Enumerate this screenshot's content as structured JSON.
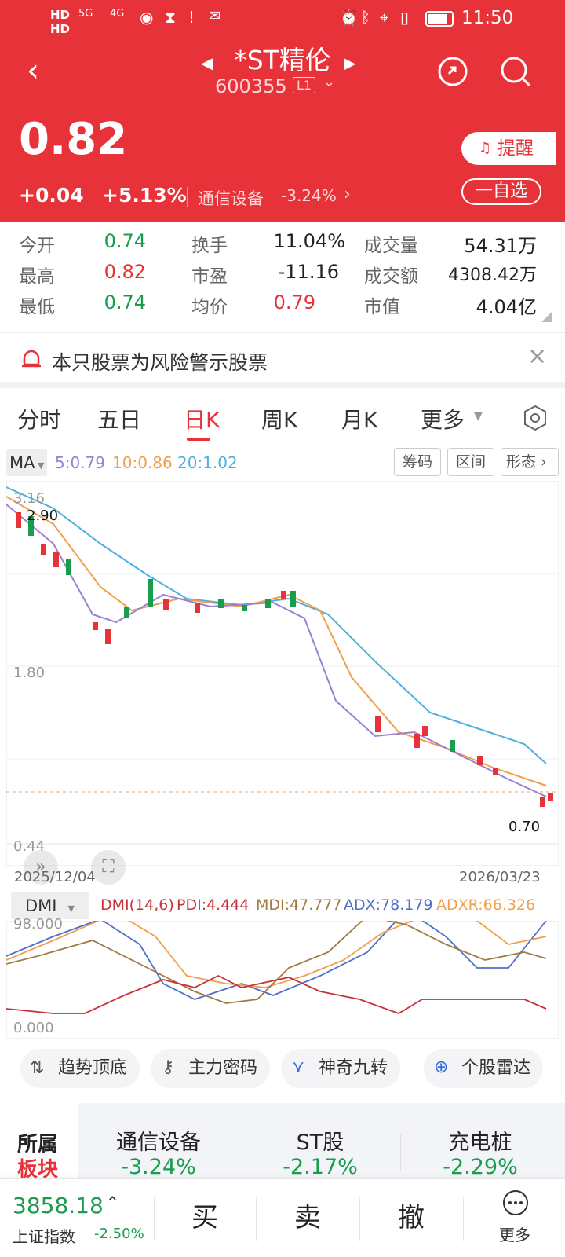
{
  "status": {
    "net1": "HD",
    "net2": "HD",
    "sig1": "5G",
    "sig2": "4G",
    "time": "11:50"
  },
  "header": {
    "title": "*ST精伦",
    "code": "600355",
    "level": "L1"
  },
  "price": {
    "last": "0.82",
    "change": "+0.04",
    "pct": "+5.13%",
    "sector": "通信设备",
    "sector_pct": "-3.24%",
    "remind": "提醒",
    "add": "一自选"
  },
  "quote": {
    "open_l": "今开",
    "open": "0.74",
    "turn_l": "换手",
    "turn": "11.04%",
    "vol_l": "成交量",
    "vol": "54.31万",
    "high_l": "最高",
    "high": "0.82",
    "pe_l": "市盈",
    "pe": "-11.16",
    "amt_l": "成交额",
    "amt": "4308.42万",
    "low_l": "最低",
    "low": "0.74",
    "avg_l": "均价",
    "avg": "0.79",
    "mcap_l": "市值",
    "mcap": "4.04亿"
  },
  "warning": "本只股票为风险警示股票",
  "tabs": {
    "t1": "分时",
    "t2": "五日",
    "t3": "日K",
    "t4": "周K",
    "t5": "月K",
    "t6": "更多"
  },
  "ma": {
    "sel": "MA",
    "ma5": "5:0.79",
    "ma10": "10:0.86",
    "ma20": "20:1.02",
    "b1": "筹码",
    "b2": "区间",
    "b3": "形态"
  },
  "kline": {
    "y_top": "3.16",
    "y_mid": "1.80",
    "y_bot": "0.44",
    "hi_mark": "2.90",
    "lo_mark": "0.70",
    "d_start": "2025/12/04",
    "d_end": "2026/03/23"
  },
  "dmi": {
    "sel": "DMI",
    "title": "DMI(14,6)",
    "pdi": "PDI:4.444",
    "mdi": "MDI:47.777",
    "adx": "ADX:78.179",
    "adxr": "ADXR:66.326",
    "y_top": "98.000",
    "y_bot": "0.000"
  },
  "tools": {
    "b1": "趋势顶底",
    "b2": "主力密码",
    "b3": "神奇九转",
    "b4": "个股雷达"
  },
  "sectors": {
    "lab1": "所属",
    "lab2": "板块",
    "s1": "通信设备",
    "p1": "-3.24%",
    "s2": "ST股",
    "p2": "-2.17%",
    "s3": "充电桩",
    "p3": "-2.29%"
  },
  "bottom": {
    "idx": "3858.18",
    "idx_name": "上证指数",
    "idx_pct": "-2.50%",
    "buy": "买",
    "sell": "卖",
    "cancel": "撤",
    "more": "更多"
  },
  "colors": {
    "red": "#e8323a",
    "green": "#1a9c4f",
    "ma5": "#9b7fd4",
    "ma10": "#f0a04b",
    "ma20": "#4fb0e0"
  }
}
